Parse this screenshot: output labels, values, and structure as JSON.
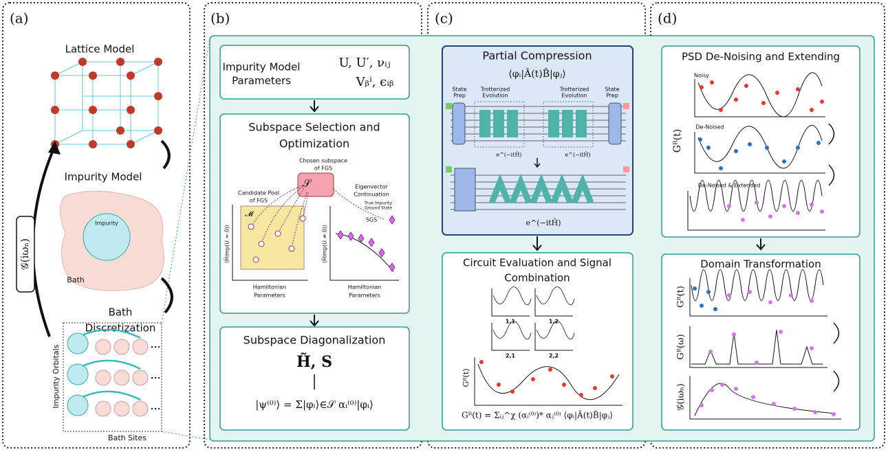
{
  "panel_a": {
    "label": "(a)",
    "lattice_title": "Lattice Model",
    "impurity_title": "Impurity Model",
    "impurity_label": "Impurity",
    "bath_label": "Bath",
    "discretization_title": [
      "Bath",
      "Discretization"
    ],
    "impurity_orbitals": "Impurity Orbitals",
    "bath_sites": "Bath Sites",
    "loop_label": "𝒢(iωₙ)"
  },
  "panel_b": {
    "label": "(b)",
    "parameters": {
      "title": [
        "Impurity Model",
        "Parameters"
      ],
      "symbols": [
        "U, U′, νᵢⱼ",
        "Vᵦⁱ, ϵᵢᵦ"
      ]
    },
    "selection": {
      "title": [
        "Subspace Selection and",
        "Optimization"
      ],
      "chosen": [
        "Chosen subspace",
        "of FGS"
      ],
      "candidate": [
        "Candidate Pool",
        "of FGS"
      ],
      "continuation": [
        "Eigenvector",
        "Continuation"
      ],
      "true_state": [
        "True Impurity",
        "Ground State"
      ],
      "sgs": "SGS",
      "pool_symbol": "𝓜",
      "subspace_symbol": "𝒮",
      "y_left": "⟨Ĥimp(U = 0)⟩",
      "y_right": "⟨Ĥimp(U ≠ 0)⟩",
      "x_left": [
        "Hamiltonian",
        "Parameters"
      ],
      "x_right": [
        "Hamiltonian",
        "Parameters"
      ]
    },
    "diagonalization": {
      "title": "Subspace Diagonalization",
      "matrices": "H̃, S",
      "equation": "|ψ⁽⁰⁾⟩ = Σ|φᵢ⟩∈𝒮 αᵢ⁽⁰⁾|φᵢ⟩"
    }
  },
  "panel_c": {
    "label": "(c)",
    "compression": {
      "title": "Partial Compression",
      "expectation": "⟨φᵢ|Â(t)B̂|φⱼ⟩",
      "state_prep": [
        "State",
        "Prep"
      ],
      "trotter": [
        "Trotterized",
        "Evolution"
      ],
      "evolution": "e^(−itĤ)"
    },
    "evaluation": {
      "title": [
        "Circuit Evaluation and Signal",
        "Combination"
      ],
      "subplots": [
        "1,1",
        "1,2",
        "2,1",
        "2,2"
      ],
      "y_label": "Gᴿ(t)",
      "equation": "Gᴿ(t) = Σᵢⱼ^χ (αᵢ⁽⁰⁾)* αⱼ⁽⁰⁾ ⟨φᵢ|Â(t)B̂|φⱼ⟩"
    }
  },
  "panel_d": {
    "label": "(d)",
    "psd": {
      "title": "PSD De-Noising and Extending",
      "plots": [
        "Noisy",
        "De-Noised",
        "De-Noised & Extended"
      ],
      "y_label": "Gᴿ(t)"
    },
    "domain": {
      "title": "Domain Transformation",
      "y_labels": [
        "Gᴿ(t)",
        "Gᴿ(ω)",
        "𝒢(iωₙ)"
      ]
    }
  }
}
